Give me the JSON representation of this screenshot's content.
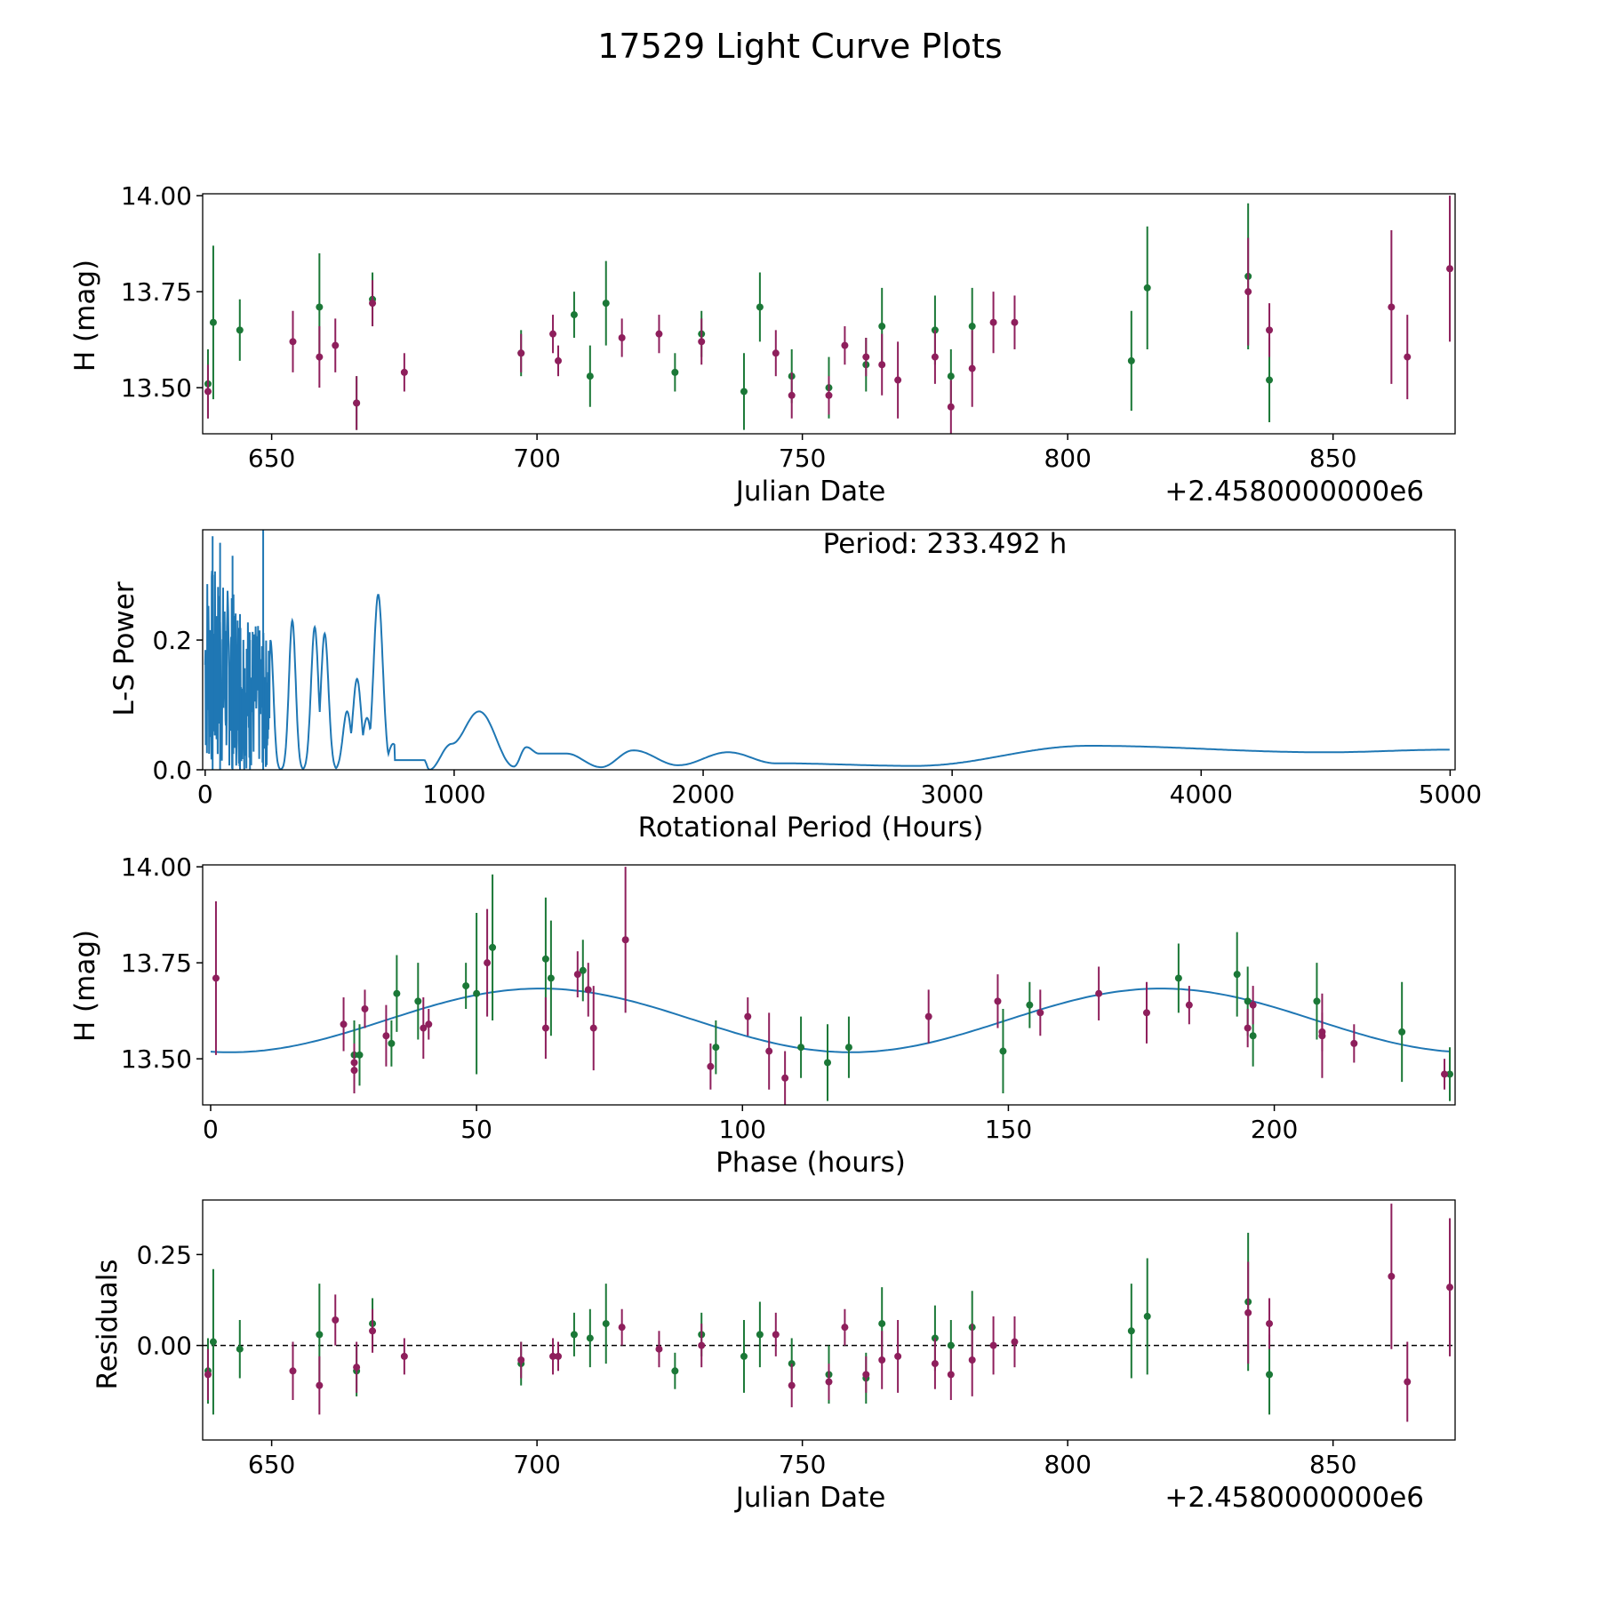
{
  "figure": {
    "title": "17529 Light Curve Plots"
  },
  "colors": {
    "green": "#1b7837",
    "purple": "#8e1f5c",
    "line": "#1f77b4"
  },
  "chart_data": [
    {
      "type": "scatter",
      "id": "lc",
      "xlabel": "Julian Date",
      "ylabel": "H (mag)",
      "x_offset_label": "+2.4580000000e6",
      "xlim": [
        637,
        873
      ],
      "ylim": [
        13.38,
        14.005
      ],
      "xticks": [
        650,
        700,
        750,
        800,
        850
      ],
      "yticks": [
        13.5,
        13.75,
        14.0
      ],
      "ytick_labels": [
        "13.50",
        "13.75",
        "14.00"
      ],
      "series": [
        {
          "name": "green",
          "points": [
            [
              638,
              13.51,
              0.09
            ],
            [
              639,
              13.67,
              0.2
            ],
            [
              644,
              13.65,
              0.08
            ],
            [
              659,
              13.71,
              0.14
            ],
            [
              666,
              13.46,
              0.07
            ],
            [
              669,
              13.73,
              0.07
            ],
            [
              697,
              13.59,
              0.06
            ],
            [
              707,
              13.69,
              0.06
            ],
            [
              710,
              13.53,
              0.08
            ],
            [
              713,
              13.72,
              0.11
            ],
            [
              726,
              13.54,
              0.05
            ],
            [
              731,
              13.64,
              0.06
            ],
            [
              739,
              13.49,
              0.1
            ],
            [
              742,
              13.71,
              0.09
            ],
            [
              748,
              13.53,
              0.07
            ],
            [
              755,
              13.5,
              0.08
            ],
            [
              762,
              13.56,
              0.07
            ],
            [
              765,
              13.66,
              0.1
            ],
            [
              775,
              13.65,
              0.09
            ],
            [
              778,
              13.53,
              0.07
            ],
            [
              782,
              13.66,
              0.1
            ],
            [
              812,
              13.57,
              0.13
            ],
            [
              815,
              13.76,
              0.16
            ],
            [
              834,
              13.79,
              0.19
            ],
            [
              838,
              13.52,
              0.11
            ]
          ]
        },
        {
          "name": "purple",
          "points": [
            [
              638,
              13.49,
              0.07
            ],
            [
              654,
              13.62,
              0.08
            ],
            [
              659,
              13.58,
              0.08
            ],
            [
              662,
              13.61,
              0.07
            ],
            [
              666,
              13.46,
              0.07
            ],
            [
              669,
              13.72,
              0.06
            ],
            [
              675,
              13.54,
              0.05
            ],
            [
              697,
              13.59,
              0.05
            ],
            [
              703,
              13.64,
              0.05
            ],
            [
              704,
              13.57,
              0.04
            ],
            [
              716,
              13.63,
              0.05
            ],
            [
              723,
              13.64,
              0.05
            ],
            [
              731,
              13.62,
              0.06
            ],
            [
              745,
              13.59,
              0.06
            ],
            [
              748,
              13.48,
              0.06
            ],
            [
              755,
              13.48,
              0.05
            ],
            [
              758,
              13.61,
              0.05
            ],
            [
              762,
              13.58,
              0.05
            ],
            [
              765,
              13.56,
              0.08
            ],
            [
              768,
              13.52,
              0.1
            ],
            [
              775,
              13.58,
              0.07
            ],
            [
              778,
              13.45,
              0.07
            ],
            [
              782,
              13.55,
              0.1
            ],
            [
              786,
              13.67,
              0.08
            ],
            [
              790,
              13.67,
              0.07
            ],
            [
              834,
              13.75,
              0.14
            ],
            [
              838,
              13.65,
              0.07
            ],
            [
              861,
              13.71,
              0.2
            ],
            [
              864,
              13.58,
              0.11
            ],
            [
              872,
              13.81,
              0.19
            ]
          ]
        }
      ]
    },
    {
      "type": "line",
      "id": "ls",
      "xlabel": "Rotational Period (Hours)",
      "ylabel": "L-S Power",
      "annotation": "Period: 233.492 h",
      "xlim": [
        -10,
        5020
      ],
      "ylim": [
        0,
        0.37
      ],
      "xticks": [
        0,
        1000,
        2000,
        3000,
        4000,
        5000
      ],
      "yticks": [
        0.0,
        0.2
      ],
      "ytick_labels": [
        "0.0",
        "0.2"
      ],
      "peaks": [
        [
          233,
          0.37
        ],
        [
          30,
          0.36
        ],
        [
          60,
          0.35
        ],
        [
          110,
          0.33
        ],
        [
          140,
          0.24
        ],
        [
          180,
          0.2
        ],
        [
          262,
          0.2
        ],
        [
          350,
          0.23
        ],
        [
          440,
          0.22
        ],
        [
          480,
          0.21
        ],
        [
          570,
          0.09
        ],
        [
          610,
          0.14
        ],
        [
          650,
          0.08
        ],
        [
          695,
          0.27
        ],
        [
          755,
          0.04
        ],
        [
          880,
          0.015
        ],
        [
          990,
          0.04
        ],
        [
          1100,
          0.09
        ],
        [
          1290,
          0.035
        ],
        [
          1450,
          0.025
        ],
        [
          1720,
          0.03
        ],
        [
          2100,
          0.027
        ],
        [
          3550,
          0.037
        ]
      ],
      "baseline": [
        [
          760,
          0.0
        ],
        [
          900,
          0.0
        ],
        [
          1240,
          0.005
        ],
        [
          1340,
          0.025
        ],
        [
          1590,
          0.004
        ],
        [
          1900,
          0.007
        ],
        [
          2290,
          0.01
        ],
        [
          2850,
          0.006
        ],
        [
          3550,
          0.037
        ],
        [
          4500,
          0.027
        ],
        [
          5000,
          0.031
        ]
      ]
    },
    {
      "type": "scatter",
      "id": "phase",
      "xlabel": "Phase (hours)",
      "ylabel": "H (mag)",
      "xlim": [
        -1.5,
        234
      ],
      "ylim": [
        13.38,
        14.005
      ],
      "xticks": [
        0,
        50,
        100,
        150,
        200
      ],
      "yticks": [
        13.5,
        13.75,
        14.0
      ],
      "ytick_labels": [
        "13.50",
        "13.75",
        "14.00"
      ],
      "model": {
        "mean": 13.6,
        "amplitude": 0.083,
        "period": 116.746,
        "peak_phase": 62
      },
      "series": [
        {
          "name": "green",
          "points": [
            [
              27,
              13.51,
              0.09
            ],
            [
              28,
              13.51,
              0.08
            ],
            [
              34,
              13.54,
              0.06
            ],
            [
              35,
              13.67,
              0.1
            ],
            [
              39,
              13.65,
              0.1
            ],
            [
              48,
              13.69,
              0.06
            ],
            [
              50,
              13.67,
              0.21
            ],
            [
              53,
              13.79,
              0.19
            ],
            [
              63,
              13.76,
              0.16
            ],
            [
              64,
              13.71,
              0.15
            ],
            [
              70,
              13.73,
              0.08
            ],
            [
              95,
              13.53,
              0.07
            ],
            [
              111,
              13.53,
              0.08
            ],
            [
              116,
              13.49,
              0.1
            ],
            [
              120,
              13.53,
              0.08
            ],
            [
              149,
              13.52,
              0.11
            ],
            [
              154,
              13.64,
              0.06
            ],
            [
              182,
              13.71,
              0.09
            ],
            [
              193,
              13.72,
              0.11
            ],
            [
              195,
              13.65,
              0.09
            ],
            [
              196,
              13.56,
              0.08
            ],
            [
              208,
              13.65,
              0.1
            ],
            [
              224,
              13.57,
              0.13
            ],
            [
              233,
              13.46,
              0.07
            ]
          ]
        },
        {
          "name": "purple",
          "points": [
            [
              1,
              13.71,
              0.2
            ],
            [
              25,
              13.59,
              0.07
            ],
            [
              27,
              13.49,
              0.05
            ],
            [
              27,
              13.47,
              0.06
            ],
            [
              29,
              13.63,
              0.05
            ],
            [
              33,
              13.56,
              0.08
            ],
            [
              40,
              13.58,
              0.08
            ],
            [
              41,
              13.59,
              0.04
            ],
            [
              52,
              13.75,
              0.14
            ],
            [
              63,
              13.58,
              0.08
            ],
            [
              69,
              13.72,
              0.06
            ],
            [
              71,
              13.68,
              0.07
            ],
            [
              72,
              13.58,
              0.11
            ],
            [
              78,
              13.81,
              0.19
            ],
            [
              94,
              13.48,
              0.06
            ],
            [
              101,
              13.61,
              0.05
            ],
            [
              105,
              13.52,
              0.1
            ],
            [
              108,
              13.45,
              0.07
            ],
            [
              135,
              13.61,
              0.07
            ],
            [
              148,
              13.65,
              0.07
            ],
            [
              156,
              13.62,
              0.06
            ],
            [
              167,
              13.67,
              0.07
            ],
            [
              176,
              13.62,
              0.08
            ],
            [
              184,
              13.64,
              0.05
            ],
            [
              195,
              13.58,
              0.05
            ],
            [
              196,
              13.64,
              0.05
            ],
            [
              209,
              13.57,
              0.05
            ],
            [
              209,
              13.56,
              0.11
            ],
            [
              215,
              13.54,
              0.05
            ],
            [
              232,
              13.46,
              0.04
            ]
          ]
        }
      ]
    },
    {
      "type": "scatter",
      "id": "resid",
      "xlabel": "Julian Date",
      "ylabel": "Residuals",
      "x_offset_label": "+2.4580000000e6",
      "xlim": [
        637,
        873
      ],
      "ylim": [
        -0.26,
        0.4
      ],
      "xticks": [
        650,
        700,
        750,
        800,
        850
      ],
      "yticks": [
        0.0,
        0.25
      ],
      "ytick_labels": [
        "0.00",
        "0.25"
      ],
      "reference_line": 0,
      "series": [
        {
          "name": "green",
          "points": [
            [
              638,
              -0.07,
              0.09
            ],
            [
              639,
              0.01,
              0.2
            ],
            [
              644,
              -0.01,
              0.08
            ],
            [
              659,
              0.03,
              0.14
            ],
            [
              666,
              -0.07,
              0.07
            ],
            [
              669,
              0.06,
              0.07
            ],
            [
              697,
              -0.05,
              0.06
            ],
            [
              707,
              0.03,
              0.06
            ],
            [
              710,
              0.02,
              0.08
            ],
            [
              713,
              0.06,
              0.11
            ],
            [
              726,
              -0.07,
              0.05
            ],
            [
              731,
              0.03,
              0.06
            ],
            [
              739,
              -0.03,
              0.1
            ],
            [
              742,
              0.03,
              0.09
            ],
            [
              748,
              -0.05,
              0.07
            ],
            [
              755,
              -0.08,
              0.08
            ],
            [
              762,
              -0.09,
              0.07
            ],
            [
              765,
              0.06,
              0.1
            ],
            [
              775,
              0.02,
              0.09
            ],
            [
              778,
              0.0,
              0.07
            ],
            [
              782,
              0.05,
              0.1
            ],
            [
              812,
              0.04,
              0.13
            ],
            [
              815,
              0.08,
              0.16
            ],
            [
              834,
              0.12,
              0.19
            ],
            [
              838,
              -0.08,
              0.11
            ]
          ]
        },
        {
          "name": "purple",
          "points": [
            [
              638,
              -0.08,
              0.07
            ],
            [
              654,
              -0.07,
              0.08
            ],
            [
              659,
              -0.11,
              0.08
            ],
            [
              662,
              0.07,
              0.07
            ],
            [
              666,
              -0.06,
              0.07
            ],
            [
              669,
              0.04,
              0.06
            ],
            [
              675,
              -0.03,
              0.05
            ],
            [
              697,
              -0.04,
              0.05
            ],
            [
              703,
              -0.03,
              0.05
            ],
            [
              704,
              -0.03,
              0.04
            ],
            [
              716,
              0.05,
              0.05
            ],
            [
              723,
              -0.01,
              0.05
            ],
            [
              731,
              0.0,
              0.06
            ],
            [
              745,
              0.03,
              0.06
            ],
            [
              748,
              -0.11,
              0.06
            ],
            [
              755,
              -0.1,
              0.05
            ],
            [
              758,
              0.05,
              0.05
            ],
            [
              762,
              -0.08,
              0.05
            ],
            [
              765,
              -0.04,
              0.08
            ],
            [
              768,
              -0.03,
              0.1
            ],
            [
              775,
              -0.05,
              0.07
            ],
            [
              778,
              -0.08,
              0.07
            ],
            [
              782,
              -0.04,
              0.1
            ],
            [
              786,
              0.0,
              0.08
            ],
            [
              790,
              0.01,
              0.07
            ],
            [
              834,
              0.09,
              0.14
            ],
            [
              838,
              0.06,
              0.07
            ],
            [
              861,
              0.19,
              0.2
            ],
            [
              864,
              -0.1,
              0.11
            ],
            [
              872,
              0.16,
              0.19
            ]
          ]
        }
      ]
    }
  ]
}
